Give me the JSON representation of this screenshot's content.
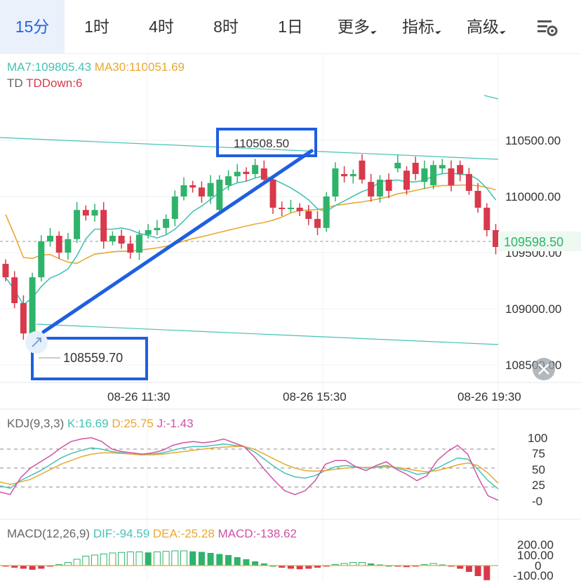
{
  "tabs": {
    "items": [
      {
        "label": "15分",
        "active": true
      },
      {
        "label": "1时"
      },
      {
        "label": "4时"
      },
      {
        "label": "8时"
      },
      {
        "label": "1日"
      },
      {
        "label": "更多",
        "dropdown": true
      },
      {
        "label": "指标",
        "dropdown": true
      },
      {
        "label": "高级",
        "dropdown": true
      }
    ],
    "settings_icon": "chart-settings-icon"
  },
  "main": {
    "ma7": "MA7:109805.43",
    "ma30": "MA30:110051.69",
    "td_label": "TD",
    "td_value": "TDDown:6",
    "price_ticks": [
      "110500.00",
      "110000.00",
      "109500.00",
      "109000.00",
      "108500.00"
    ],
    "current_price": "109598.50",
    "annotation_high": "110508.50",
    "annotation_low": "108559.70",
    "time_labels": [
      "08-26 11:30",
      "08-26 15:30",
      "08-26 19:30"
    ],
    "close_icon": "close-icon"
  },
  "kdj": {
    "title": "KDJ(9,3,3)",
    "k": "K:16.69",
    "d": "D:25.75",
    "j": "J:-1.43",
    "ticks": [
      "100",
      "75",
      "50",
      "25",
      "-0"
    ]
  },
  "macd": {
    "title": "MACD(12,26,9)",
    "dif": "DIF:-94.59",
    "dea": "DEA:-25.28",
    "macd": "MACD:-138.62",
    "ticks": [
      "200.00",
      "100.00",
      "0",
      "-100.00"
    ]
  },
  "colors": {
    "accent": "#2b63d9",
    "up": "#2fb36b",
    "down": "#d8394b",
    "ma7": "#45c2b4",
    "ma30": "#e8a833",
    "j": "#d052a6",
    "annotation": "#1f5fe0"
  },
  "chart_data": [
    {
      "type": "candlestick",
      "ylim": [
        108400,
        110800
      ],
      "opens": [
        109400,
        109280,
        109050,
        108780,
        109280,
        109600,
        109650,
        109500,
        109620,
        109880,
        109830,
        109880,
        109600,
        109650,
        109580,
        109500,
        109660,
        109700,
        109720,
        109800,
        110000,
        110100,
        110080,
        110000,
        109880,
        110100,
        110180,
        110220,
        110200,
        110250,
        110150,
        109900,
        109890,
        109900,
        109870,
        109800,
        109720,
        110000,
        110200,
        110180,
        110320,
        110130,
        110000,
        110150,
        110250,
        110230,
        110300,
        110130,
        110100,
        110250,
        110250,
        110280,
        110200,
        110050,
        109900,
        109700
      ],
      "closes": [
        109280,
        109050,
        108780,
        109280,
        109600,
        109650,
        109500,
        109620,
        109880,
        109830,
        109880,
        109600,
        109650,
        109580,
        109500,
        109660,
        109700,
        109720,
        109800,
        110000,
        110100,
        110080,
        110000,
        110120,
        110150,
        110180,
        110220,
        110200,
        110280,
        110150,
        109900,
        109890,
        109900,
        109870,
        109800,
        109720,
        110000,
        110250,
        110180,
        110200,
        110150,
        110000,
        110150,
        110050,
        110300,
        110060,
        110200,
        110250,
        110280,
        110280,
        110100,
        110200,
        110050,
        109900,
        109700,
        109550
      ]
    },
    {
      "type": "line",
      "series": [
        {
          "name": "K",
          "values": [
            22,
            18,
            30,
            38,
            46,
            56,
            66,
            73,
            78,
            82,
            80,
            76,
            74,
            72,
            71,
            72,
            74,
            78,
            82,
            84,
            84,
            86,
            88,
            86,
            84,
            76,
            64,
            52,
            42,
            36,
            34,
            38,
            46,
            52,
            54,
            52,
            50,
            52,
            54,
            50,
            46,
            40,
            42,
            50,
            58,
            66,
            64,
            48,
            30,
            17
          ]
        },
        {
          "name": "D",
          "values": [
            28,
            24,
            28,
            32,
            40,
            48,
            56,
            62,
            68,
            72,
            74,
            74,
            73,
            72,
            71,
            71,
            72,
            74,
            76,
            78,
            80,
            82,
            83,
            84,
            84,
            80,
            72,
            64,
            56,
            50,
            46,
            45,
            46,
            48,
            50,
            51,
            51,
            51,
            52,
            51,
            49,
            46,
            44,
            46,
            50,
            55,
            58,
            54,
            42,
            26
          ]
        },
        {
          "name": "J",
          "values": [
            12,
            8,
            34,
            50,
            60,
            70,
            82,
            92,
            96,
            98,
            92,
            80,
            76,
            74,
            72,
            74,
            78,
            86,
            90,
            92,
            90,
            92,
            96,
            90,
            84,
            68,
            48,
            30,
            14,
            8,
            14,
            30,
            56,
            62,
            62,
            52,
            46,
            54,
            60,
            48,
            40,
            30,
            38,
            62,
            76,
            86,
            72,
            36,
            6,
            -1
          ]
        }
      ]
    },
    {
      "type": "bar",
      "series": [
        {
          "name": "MACD",
          "values": [
            -10,
            -20,
            -30,
            -40,
            -30,
            -10,
            10,
            30,
            60,
            90,
            100,
            110,
            120,
            125,
            130,
            130,
            125,
            130,
            135,
            140,
            140,
            135,
            130,
            120,
            110,
            100,
            80,
            60,
            40,
            20,
            0,
            -20,
            -30,
            -35,
            -30,
            -20,
            -10,
            10,
            20,
            30,
            30,
            20,
            10,
            0,
            -10,
            -15,
            -10,
            10,
            20,
            10,
            -10,
            -30,
            -60,
            -100,
            -138.62
          ]
        }
      ]
    }
  ]
}
